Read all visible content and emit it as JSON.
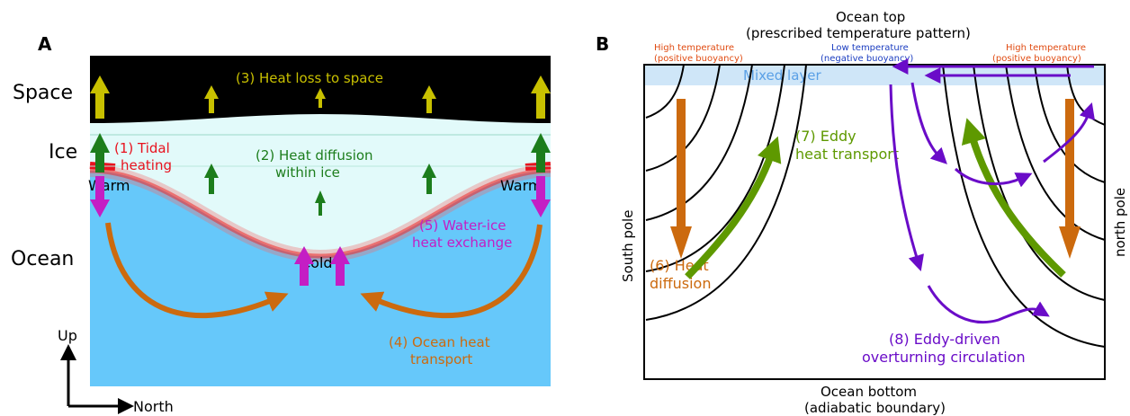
{
  "panel_a": {
    "letter": "A",
    "layers": {
      "space": "Space",
      "ice": "Ice",
      "ocean": "Ocean"
    },
    "labels": {
      "heat_loss": "(3) Heat loss to space",
      "tidal_line1": "(1) Tidal",
      "tidal_line2": "heating",
      "diffusion_line1": "(2) Heat diffusion",
      "diffusion_line2": "within ice",
      "warm_left": "Warm",
      "warm_right": "Warm",
      "cold": "Cold",
      "exchange_line1": "(5) Water-ice",
      "exchange_line2": "heat exchange",
      "transport_line1": "(4) Ocean heat",
      "transport_line2": "transport"
    },
    "axes": {
      "up": "Up",
      "north": "North"
    }
  },
  "panel_b": {
    "letter": "B",
    "top_line1": "Ocean top",
    "top_line2": "(prescribed temperature pattern)",
    "high_left_line1": "High temperature",
    "high_left_line2": "(positive buoyancy)",
    "low_line1": "Low temperature",
    "low_line2": "(negative buoyancy)",
    "high_right_line1": "High temperature",
    "high_right_line2": "(positive buoyancy)",
    "mixed_layer": "Mixed layer",
    "south_pole": "South pole",
    "north_pole": "north pole",
    "diffusion_line1": "(6) Heat",
    "diffusion_line2": "diffusion",
    "eddy_line1": "(7) Eddy",
    "eddy_line2": "heat transport",
    "overturning_line1": "(8) Eddy-driven",
    "overturning_line2": "overturning circulation",
    "bottom_line1": "Ocean bottom",
    "bottom_line2": "(adiabatic boundary)"
  },
  "colors": {
    "space": "#000000",
    "ice": "#e2fafa",
    "ocean": "#66c8fa",
    "tidal": "#e8121e",
    "heat_loss": "#c8c000",
    "diffusion": "#1c7d1c",
    "exchange": "#c41ec4",
    "transport": "#cc6a0e",
    "eddy_green": "#5e9900",
    "overturning": "#6a0cc8",
    "mixed_layer": "#cfe6f8",
    "mixed_text": "#5aa0e6",
    "high_temp": "#e04a10",
    "low_temp": "#1a3cc0"
  }
}
